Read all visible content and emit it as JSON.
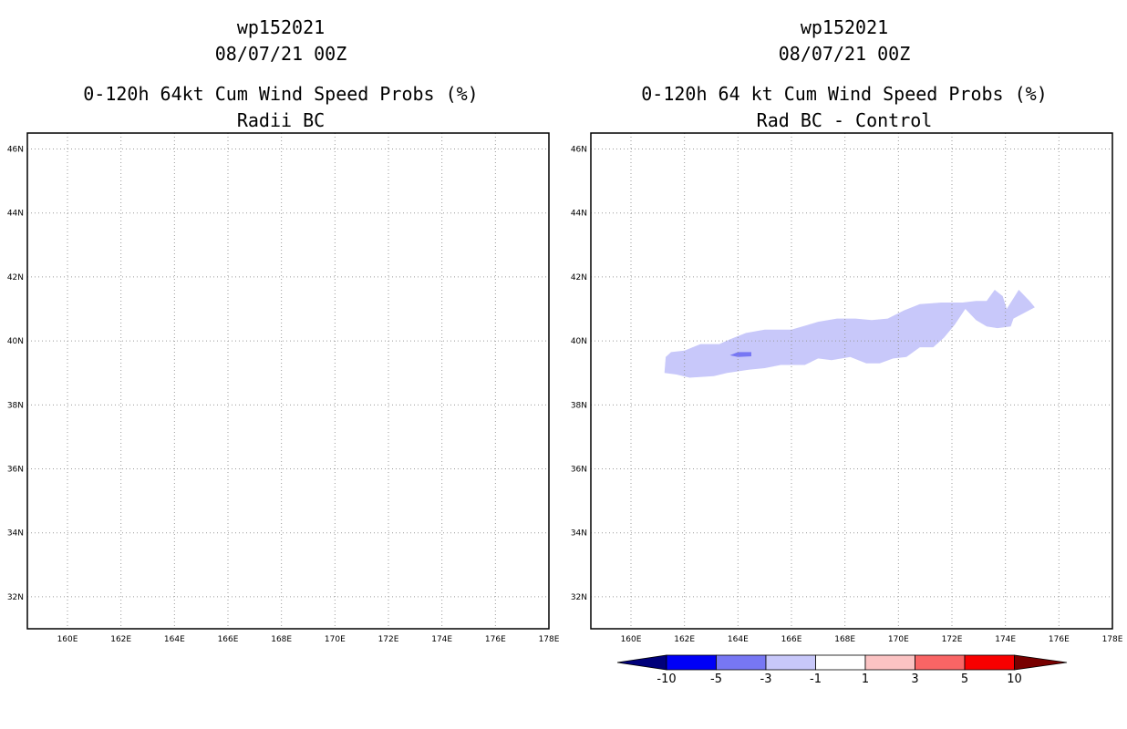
{
  "chart_data": [
    {
      "type": "heatmap",
      "storm_id": "wp152021",
      "datetime": "08/07/21 00Z",
      "title": "0-120h 64kt Cum Wind Speed Probs (%)",
      "subtitle": "Radii BC",
      "xlim": [
        158.5,
        178
      ],
      "ylim": [
        31,
        46.5
      ],
      "x_ticks": [
        160,
        162,
        164,
        166,
        168,
        170,
        172,
        174,
        176,
        178
      ],
      "x_tick_labels": [
        "160E",
        "162E",
        "164E",
        "166E",
        "168E",
        "170E",
        "172E",
        "174E",
        "176E",
        "178E"
      ],
      "y_ticks": [
        32,
        34,
        36,
        38,
        40,
        42,
        44,
        46
      ],
      "y_tick_labels": [
        "32N",
        "34N",
        "36N",
        "38N",
        "40N",
        "42N",
        "44N",
        "46N"
      ],
      "grid": true,
      "regions": []
    },
    {
      "type": "heatmap",
      "storm_id": "wp152021",
      "datetime": "08/07/21 00Z",
      "title": "0-120h 64 kt Cum Wind Speed Probs (%)",
      "subtitle": "Rad BC - Control",
      "xlim": [
        158.5,
        178
      ],
      "ylim": [
        31,
        46.5
      ],
      "x_ticks": [
        160,
        162,
        164,
        166,
        168,
        170,
        172,
        174,
        176,
        178
      ],
      "x_tick_labels": [
        "160E",
        "162E",
        "164E",
        "166E",
        "168E",
        "170E",
        "172E",
        "174E",
        "176E",
        "178E"
      ],
      "y_ticks": [
        32,
        34,
        36,
        38,
        40,
        42,
        44,
        46
      ],
      "y_tick_labels": [
        "32N",
        "34N",
        "36N",
        "38N",
        "40N",
        "42N",
        "44N",
        "46N"
      ],
      "grid": true,
      "regions": [
        {
          "level": "-3 to -1",
          "color": "#c8c8fa",
          "polygon_lonlat": [
            [
              161.25,
              39.0
            ],
            [
              161.3,
              39.5
            ],
            [
              161.5,
              39.65
            ],
            [
              162.0,
              39.7
            ],
            [
              162.6,
              39.9
            ],
            [
              163.3,
              39.9
            ],
            [
              163.7,
              40.05
            ],
            [
              164.3,
              40.25
            ],
            [
              165.0,
              40.35
            ],
            [
              166.0,
              40.35
            ],
            [
              166.6,
              40.5
            ],
            [
              167.0,
              40.6
            ],
            [
              167.7,
              40.7
            ],
            [
              168.4,
              40.7
            ],
            [
              169.0,
              40.65
            ],
            [
              169.6,
              40.7
            ],
            [
              170.2,
              40.95
            ],
            [
              170.8,
              41.15
            ],
            [
              171.6,
              41.2
            ],
            [
              172.4,
              41.2
            ],
            [
              172.9,
              41.25
            ],
            [
              173.3,
              41.25
            ],
            [
              173.6,
              41.6
            ],
            [
              173.9,
              41.4
            ],
            [
              174.05,
              41.0
            ],
            [
              174.5,
              41.6
            ],
            [
              174.9,
              41.25
            ],
            [
              175.1,
              41.05
            ],
            [
              174.3,
              40.7
            ],
            [
              174.2,
              40.45
            ],
            [
              173.7,
              40.4
            ],
            [
              173.3,
              40.45
            ],
            [
              172.9,
              40.65
            ],
            [
              172.5,
              41.0
            ],
            [
              172.1,
              40.5
            ],
            [
              171.7,
              40.1
            ],
            [
              171.3,
              39.8
            ],
            [
              170.8,
              39.8
            ],
            [
              170.3,
              39.5
            ],
            [
              169.8,
              39.45
            ],
            [
              169.3,
              39.3
            ],
            [
              168.8,
              39.3
            ],
            [
              168.2,
              39.5
            ],
            [
              167.5,
              39.4
            ],
            [
              167.0,
              39.45
            ],
            [
              166.5,
              39.25
            ],
            [
              165.6,
              39.25
            ],
            [
              165.0,
              39.15
            ],
            [
              164.4,
              39.1
            ],
            [
              163.6,
              39.0
            ],
            [
              163.1,
              38.9
            ],
            [
              162.2,
              38.85
            ],
            [
              161.7,
              38.95
            ]
          ]
        },
        {
          "level": "-5 to -3",
          "color": "#7777f4",
          "polygon_lonlat": [
            [
              163.7,
              39.55
            ],
            [
              164.0,
              39.65
            ],
            [
              164.5,
              39.65
            ],
            [
              164.5,
              39.52
            ],
            [
              164.0,
              39.5
            ]
          ]
        }
      ],
      "colorbar": {
        "labels": [
          "-10",
          "-5",
          "-3",
          "-1",
          "1",
          "3",
          "5",
          "10"
        ],
        "colors": [
          "#00007a",
          "#0000f6",
          "#7777f4",
          "#c8c8fa",
          "#ffffff",
          "#fbc3c3",
          "#f96565",
          "#f80000",
          "#780000"
        ]
      }
    }
  ]
}
